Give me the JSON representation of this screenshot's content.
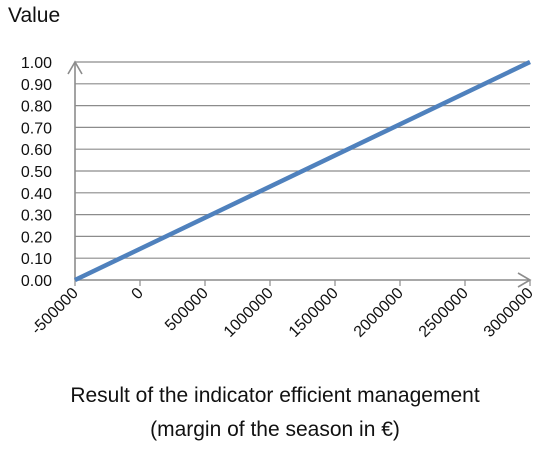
{
  "chart_data": {
    "type": "line",
    "ylabel": "Value",
    "xlabel_lines": [
      "Result of the indicator efficient management",
      "(margin of the season in €)"
    ],
    "x_ticks": [
      -500000,
      0,
      500000,
      1000000,
      1500000,
      2000000,
      2500000,
      3000000
    ],
    "x_tick_labels": [
      "-500000",
      "0",
      "500000",
      "1000000",
      "1500000",
      "2000000",
      "2500000",
      "3000000"
    ],
    "y_ticks": [
      0,
      0.1,
      0.2,
      0.3,
      0.4,
      0.5,
      0.6,
      0.7,
      0.8,
      0.9,
      1.0
    ],
    "y_tick_labels": [
      "0.00",
      "0.10",
      "0.20",
      "0.30",
      "0.40",
      "0.50",
      "0.60",
      "0.70",
      "0.80",
      "0.90",
      "1.00"
    ],
    "xlim": [
      -500000,
      3000000
    ],
    "ylim": [
      0,
      1
    ],
    "grid": true,
    "series": [
      {
        "x": [
          -500000,
          3000000
        ],
        "y": [
          0,
          1
        ],
        "color": "#4f81bd"
      }
    ],
    "axis_color": "#8c8c8c",
    "grid_color": "#8c8c8c"
  }
}
